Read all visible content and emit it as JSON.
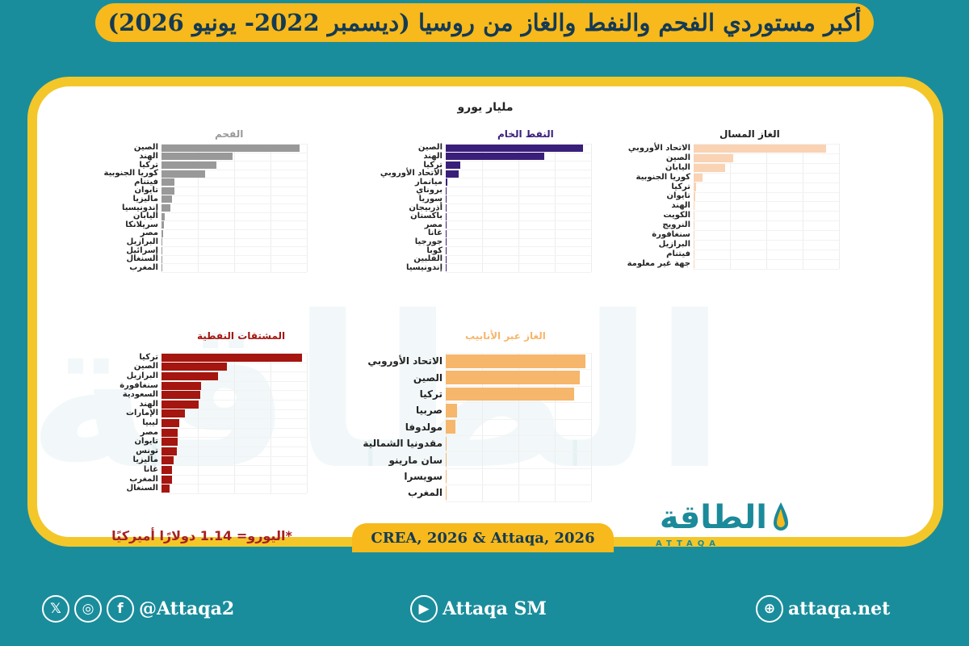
{
  "title": "أكبر مستوردي الفحم والنفط والغاز من روسيا (ديسمبر 2022- يونيو 2026)",
  "unit_label": "مليار يورو",
  "source": "CREA, 2026 & Attaqa, 2026",
  "note": "*اليورو= 1.14 دولارًا أميركيًا",
  "logo": {
    "arabic": "الطاقة",
    "latin": "ATTAQA"
  },
  "footer": {
    "social_handle": "@Attaqa2",
    "youtube": "Attaqa SM",
    "website": "attaqa.net"
  },
  "colors": {
    "coal": "#999999",
    "crude": "#3a1f7a",
    "lng": "#f9d3b3",
    "products": "#a4160f",
    "pipeline": "#f6b66b",
    "accent": "#f7b91b",
    "background": "#1a8d9c"
  },
  "chart_data": [
    {
      "type": "bar",
      "orientation": "horizontal",
      "title": "الفحم",
      "title_color": "#999999",
      "bar_color": "#999999",
      "categories": [
        "الصين",
        "الهند",
        "تركيا",
        "كوريا الجنوبية",
        "فيتنام",
        "تايوان",
        "ماليزيا",
        "إندونيسيا",
        "اليابان",
        "سريلانكا",
        "مصر",
        "البرازيل",
        "إسرائيل",
        "السنغال",
        "المغرب"
      ],
      "values": [
        38.0,
        19.5,
        15.0,
        12.0,
        3.5,
        3.5,
        2.8,
        2.5,
        0.8,
        0.6,
        0.5,
        0.3,
        0.2,
        0.1,
        0.05
      ],
      "xlim": [
        0,
        40
      ]
    },
    {
      "type": "bar",
      "orientation": "horizontal",
      "title": "النفط الخام",
      "title_color": "#3a1f7a",
      "bar_color": "#3a1f7a",
      "categories": [
        "الصين",
        "الهند",
        "تركيا",
        "الاتحاد الأوروبي",
        "ميانمار",
        "بروناي",
        "سوريا",
        "أذربيجان",
        "باكستان",
        "مصر",
        "غانا",
        "جورجيا",
        "كوبا",
        "الفلبين",
        "إندونيسيا"
      ],
      "values": [
        170,
        122,
        18,
        16,
        2,
        0.5,
        0.4,
        0.3,
        0.3,
        0.2,
        0.2,
        0.1,
        0.1,
        0.1,
        0.05
      ],
      "xlim": [
        0,
        180
      ]
    },
    {
      "type": "bar",
      "orientation": "horizontal",
      "title": "الغاز المسال",
      "title_color": "#222222",
      "bar_color": "#f9d3b3",
      "categories": [
        "الاتحاد الأوروبي",
        "الصين",
        "اليابان",
        "كوريا الجنوبية",
        "تركيا",
        "تايوان",
        "الهند",
        "الكويت",
        "النرويج",
        "سنغافورة",
        "البرازيل",
        "فيتنام",
        "جهة غير معلومة"
      ],
      "values": [
        50,
        15,
        12,
        3.5,
        0.8,
        0.5,
        0.2,
        0.1,
        0.1,
        0.05,
        0.05,
        0.03,
        0.02
      ],
      "xlim": [
        0,
        55
      ]
    },
    {
      "type": "bar",
      "orientation": "horizontal",
      "title": "المشتقات النفطية",
      "title_color": "#a4160f",
      "bar_color": "#a4160f",
      "categories": [
        "تركيا",
        "الصين",
        "البرازيل",
        "سنغافورة",
        "السعودية",
        "الهند",
        "الإمارات",
        "ليبيا",
        "مصر",
        "تايوان",
        "تونس",
        "ماليزيا",
        "غانا",
        "المغرب",
        "السنغال"
      ],
      "values": [
        60,
        28,
        24,
        17,
        16.5,
        16,
        10,
        7.5,
        7,
        7,
        6.5,
        5,
        4.5,
        4.5,
        3.5
      ],
      "xlim": [
        0,
        62
      ]
    },
    {
      "type": "bar",
      "orientation": "horizontal",
      "title": "الغاز عبر الأنابيب",
      "title_color": "#f6b66b",
      "bar_color": "#f6b66b",
      "categories": [
        "الاتحاد الأوروبي",
        "الصين",
        "تركيا",
        "صربيا",
        "مولدوفا",
        "مقدونيا الشمالية",
        "سان مارينو",
        "سويسرا",
        "المغرب"
      ],
      "values": [
        50,
        48,
        46,
        4,
        3.5,
        0.3,
        0.1,
        0.05,
        0.03
      ],
      "xlim": [
        0,
        52
      ]
    }
  ]
}
